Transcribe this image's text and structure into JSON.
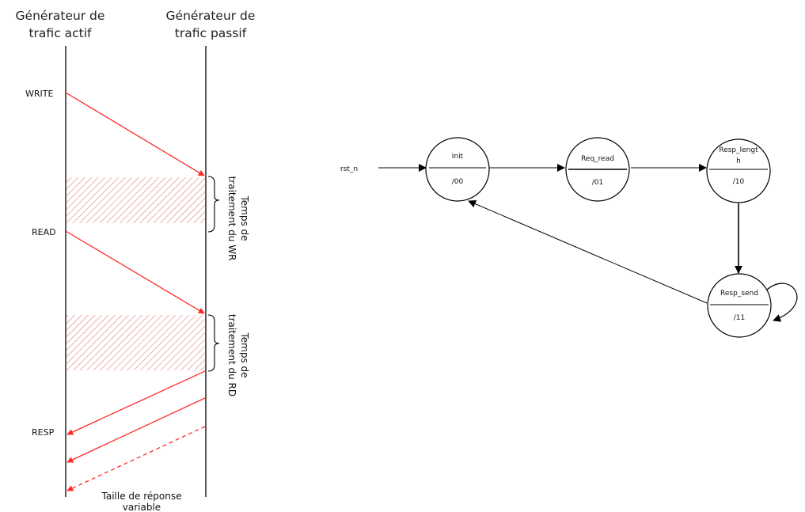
{
  "timeline": {
    "active_header": {
      "line1": "Générateur de",
      "line2": "trafic actif"
    },
    "passive_header": {
      "line1": "Générateur de",
      "line2": "trafic passif"
    },
    "events": {
      "write": "WRITE",
      "read": "READ",
      "resp": "RESP"
    },
    "wr_processing": {
      "line1": "Temps de",
      "line2": "traitement du WR"
    },
    "rd_processing": {
      "line1": "Temps de",
      "line2": "traitement du RD"
    },
    "footnote": {
      "line1": "Taille de réponse",
      "line2": "variable"
    },
    "colors": {
      "arrow": "#ff2a2a",
      "hatch": "#e98e8e",
      "lifeline": "#000000"
    }
  },
  "fsm": {
    "reset_signal": "rst_n",
    "states": {
      "init": {
        "name": "Init",
        "output": "/00"
      },
      "req_read": {
        "name": "Req_read",
        "output": "/01"
      },
      "resp_length": {
        "name_line1": "Resp_lengt",
        "name_line2": "h",
        "output": "/10"
      },
      "resp_send": {
        "name": "Resp_send",
        "output": "/11"
      }
    }
  }
}
